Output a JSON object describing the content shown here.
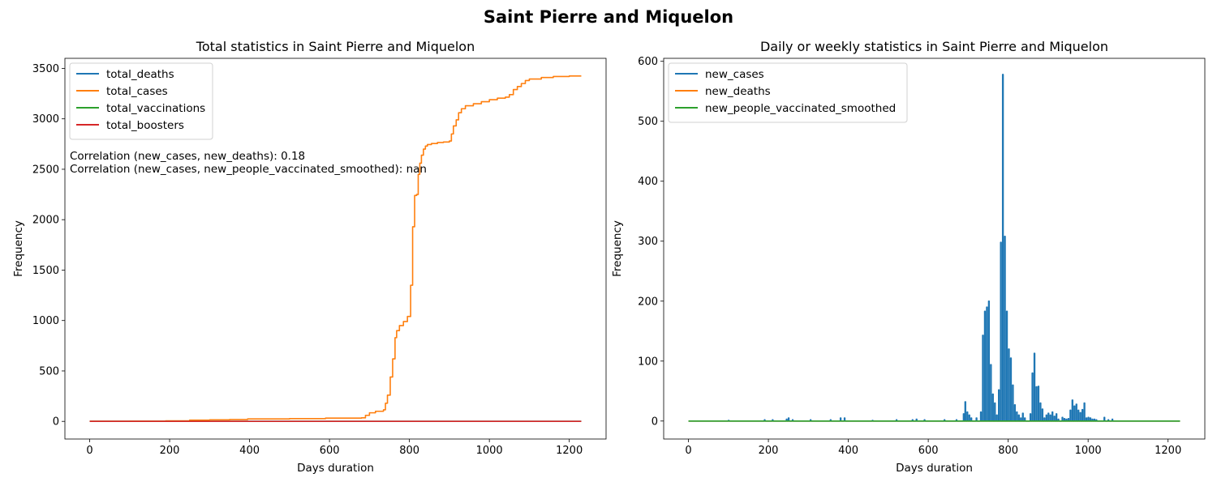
{
  "figure": {
    "suptitle": "Saint Pierre and Miquelon"
  },
  "chart_data": [
    {
      "type": "line",
      "title": "Total statistics in Saint Pierre and Miquelon",
      "xlabel": "Days duration",
      "ylabel": "Frequency",
      "xlim": [
        -62,
        1292
      ],
      "ylim": [
        -175,
        3600
      ],
      "xticks": [
        0,
        200,
        400,
        600,
        800,
        1000,
        1200
      ],
      "yticks": [
        0,
        500,
        1000,
        1500,
        2000,
        2500,
        3000,
        3500
      ],
      "legend_position": "upper-left",
      "annotations": [
        "Correlation (new_cases, new_deaths): 0.18",
        "Correlation (new_cases, new_people_vaccinated_smoothed): nan"
      ],
      "series": [
        {
          "name": "total_deaths",
          "color": "#1f77b4",
          "points": [
            [
              0,
              0
            ],
            [
              1230,
              0
            ]
          ]
        },
        {
          "name": "total_cases",
          "color": "#ff7f0e",
          "step": true,
          "points": [
            [
              0,
              1
            ],
            [
              100,
              2
            ],
            [
              190,
              5
            ],
            [
              250,
              12
            ],
            [
              300,
              15
            ],
            [
              350,
              18
            ],
            [
              395,
              24
            ],
            [
              500,
              27
            ],
            [
              590,
              32
            ],
            [
              680,
              35
            ],
            [
              690,
              60
            ],
            [
              700,
              85
            ],
            [
              715,
              100
            ],
            [
              735,
              115
            ],
            [
              740,
              180
            ],
            [
              745,
              260
            ],
            [
              752,
              440
            ],
            [
              758,
              620
            ],
            [
              764,
              830
            ],
            [
              768,
              900
            ],
            [
              775,
              950
            ],
            [
              785,
              990
            ],
            [
              795,
              1040
            ],
            [
              803,
              1350
            ],
            [
              808,
              1930
            ],
            [
              813,
              2240
            ],
            [
              818,
              2250
            ],
            [
              822,
              2450
            ],
            [
              826,
              2560
            ],
            [
              830,
              2640
            ],
            [
              835,
              2700
            ],
            [
              840,
              2730
            ],
            [
              845,
              2745
            ],
            [
              855,
              2755
            ],
            [
              870,
              2765
            ],
            [
              885,
              2770
            ],
            [
              900,
              2780
            ],
            [
              905,
              2850
            ],
            [
              910,
              2930
            ],
            [
              917,
              2990
            ],
            [
              923,
              3060
            ],
            [
              930,
              3100
            ],
            [
              940,
              3130
            ],
            [
              960,
              3150
            ],
            [
              980,
              3170
            ],
            [
              1000,
              3190
            ],
            [
              1020,
              3205
            ],
            [
              1040,
              3215
            ],
            [
              1050,
              3240
            ],
            [
              1060,
              3290
            ],
            [
              1070,
              3320
            ],
            [
              1080,
              3350
            ],
            [
              1090,
              3380
            ],
            [
              1100,
              3395
            ],
            [
              1130,
              3410
            ],
            [
              1160,
              3420
            ],
            [
              1200,
              3425
            ],
            [
              1230,
              3425
            ]
          ]
        },
        {
          "name": "total_vaccinations",
          "color": "#2ca02c",
          "points": [
            [
              0,
              0
            ],
            [
              1230,
              0
            ]
          ]
        },
        {
          "name": "total_boosters",
          "color": "#d62728",
          "points": [
            [
              0,
              0
            ],
            [
              1230,
              0
            ]
          ]
        }
      ]
    },
    {
      "type": "line",
      "title": "Daily or weekly statistics in Saint Pierre and Miquelon",
      "xlabel": "Days duration",
      "ylabel": "Frequency",
      "xlim": [
        -62,
        1292
      ],
      "ylim": [
        -30,
        605
      ],
      "xticks": [
        0,
        200,
        400,
        600,
        800,
        1000,
        1200
      ],
      "yticks": [
        0,
        100,
        200,
        300,
        400,
        500,
        600
      ],
      "legend_position": "upper-left",
      "series": [
        {
          "name": "new_cases",
          "color": "#1f77b4",
          "spikes": true,
          "points": [
            [
              100,
              1
            ],
            [
              190,
              2
            ],
            [
              210,
              2
            ],
            [
              245,
              3
            ],
            [
              250,
              5
            ],
            [
              260,
              2
            ],
            [
              305,
              2
            ],
            [
              355,
              2
            ],
            [
              380,
              5
            ],
            [
              390,
              5
            ],
            [
              460,
              1
            ],
            [
              520,
              2
            ],
            [
              560,
              2
            ],
            [
              570,
              3
            ],
            [
              590,
              2
            ],
            [
              640,
              2
            ],
            [
              670,
              2
            ],
            [
              688,
              12
            ],
            [
              692,
              32
            ],
            [
              697,
              15
            ],
            [
              702,
              10
            ],
            [
              707,
              5
            ],
            [
              720,
              5
            ],
            [
              731,
              15
            ],
            [
              736,
              143
            ],
            [
              741,
              183
            ],
            [
              746,
              190
            ],
            [
              751,
              200
            ],
            [
              756,
              94
            ],
            [
              761,
              45
            ],
            [
              766,
              30
            ],
            [
              771,
              10
            ],
            [
              776,
              52
            ],
            [
              781,
              298
            ],
            [
              786,
              578
            ],
            [
              791,
              308
            ],
            [
              796,
              183
            ],
            [
              801,
              120
            ],
            [
              806,
              105
            ],
            [
              811,
              60
            ],
            [
              816,
              27
            ],
            [
              821,
              15
            ],
            [
              826,
              10
            ],
            [
              831,
              5
            ],
            [
              836,
              13
            ],
            [
              841,
              5
            ],
            [
              855,
              12
            ],
            [
              860,
              80
            ],
            [
              865,
              113
            ],
            [
              870,
              57
            ],
            [
              875,
              58
            ],
            [
              880,
              30
            ],
            [
              885,
              20
            ],
            [
              890,
              5
            ],
            [
              895,
              10
            ],
            [
              900,
              13
            ],
            [
              905,
              10
            ],
            [
              910,
              15
            ],
            [
              915,
              8
            ],
            [
              920,
              12
            ],
            [
              925,
              3
            ],
            [
              935,
              6
            ],
            [
              940,
              4
            ],
            [
              945,
              3
            ],
            [
              950,
              4
            ],
            [
              955,
              18
            ],
            [
              960,
              35
            ],
            [
              965,
              25
            ],
            [
              970,
              28
            ],
            [
              975,
              18
            ],
            [
              980,
              14
            ],
            [
              985,
              19
            ],
            [
              990,
              30
            ],
            [
              995,
              5
            ],
            [
              1000,
              6
            ],
            [
              1005,
              5
            ],
            [
              1010,
              3
            ],
            [
              1015,
              3
            ],
            [
              1020,
              2
            ],
            [
              1040,
              6
            ],
            [
              1050,
              2
            ],
            [
              1060,
              3
            ]
          ]
        },
        {
          "name": "new_deaths",
          "color": "#ff7f0e",
          "points": [
            [
              0,
              0
            ],
            [
              1230,
              0
            ]
          ]
        },
        {
          "name": "new_people_vaccinated_smoothed",
          "color": "#2ca02c",
          "points": [
            [
              0,
              0
            ],
            [
              1230,
              0
            ]
          ]
        }
      ]
    }
  ]
}
